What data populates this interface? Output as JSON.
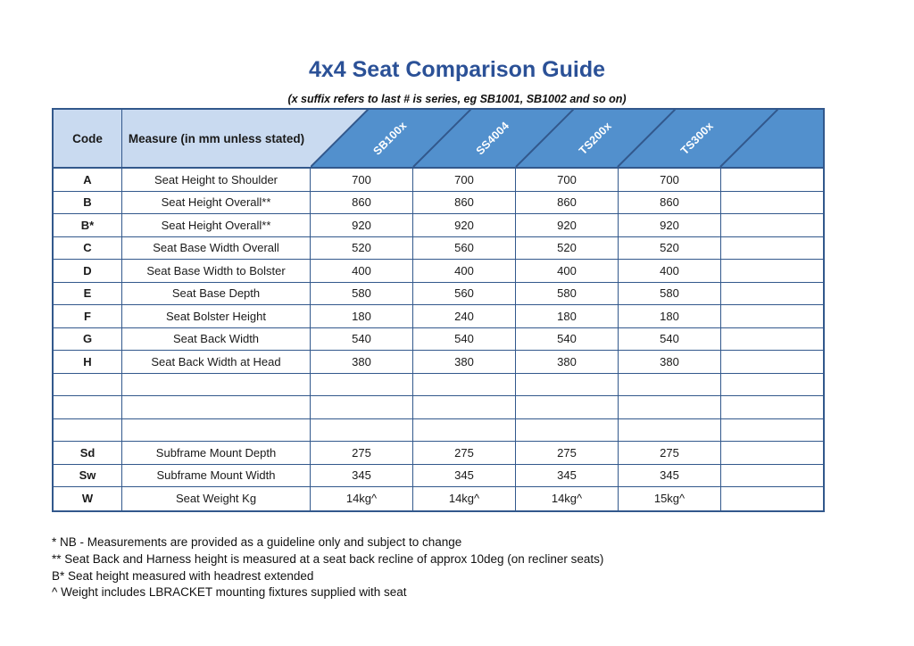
{
  "page": {
    "title": "4x4 Seat Comparison Guide",
    "subtitle": "(x suffix refers to last # is series, eg SB1001, SB1002 and so on)"
  },
  "table": {
    "code_header": "Code",
    "measure_header": "Measure (in mm unless stated)",
    "series_headers": [
      "SB100x",
      "SS4004",
      "TS200x",
      "TS300x"
    ],
    "rows": [
      {
        "code": "A",
        "measure": "Seat Height to Shoulder",
        "values": [
          "700",
          "700",
          "700",
          "700",
          ""
        ]
      },
      {
        "code": "B",
        "measure": "Seat Height Overall**",
        "values": [
          "860",
          "860",
          "860",
          "860",
          ""
        ]
      },
      {
        "code": "B*",
        "measure": "Seat Height Overall**",
        "values": [
          "920",
          "920",
          "920",
          "920",
          ""
        ]
      },
      {
        "code": "C",
        "measure": "Seat Base Width Overall",
        "values": [
          "520",
          "560",
          "520",
          "520",
          ""
        ]
      },
      {
        "code": "D",
        "measure": "Seat Base Width to Bolster",
        "values": [
          "400",
          "400",
          "400",
          "400",
          ""
        ]
      },
      {
        "code": "E",
        "measure": "Seat Base Depth",
        "values": [
          "580",
          "560",
          "580",
          "580",
          ""
        ]
      },
      {
        "code": "F",
        "measure": "Seat Bolster Height",
        "values": [
          "180",
          "240",
          "180",
          "180",
          ""
        ]
      },
      {
        "code": "G",
        "measure": "Seat Back Width",
        "values": [
          "540",
          "540",
          "540",
          "540",
          ""
        ]
      },
      {
        "code": "H",
        "measure": "Seat Back Width at Head",
        "values": [
          "380",
          "380",
          "380",
          "380",
          ""
        ]
      },
      {
        "code": "",
        "measure": "",
        "values": [
          "",
          "",
          "",
          "",
          ""
        ]
      },
      {
        "code": "",
        "measure": "",
        "values": [
          "",
          "",
          "",
          "",
          ""
        ]
      },
      {
        "code": "",
        "measure": "",
        "values": [
          "",
          "",
          "",
          "",
          ""
        ]
      },
      {
        "code": "Sd",
        "measure": "Subframe Mount Depth",
        "values": [
          "275",
          "275",
          "275",
          "275",
          ""
        ]
      },
      {
        "code": "Sw",
        "measure": "Subframe Mount Width",
        "values": [
          "345",
          "345",
          "345",
          "345",
          ""
        ]
      },
      {
        "code": "W",
        "measure": "Seat Weight Kg",
        "values": [
          "14kg^",
          "14kg^",
          "14kg^",
          "15kg^",
          ""
        ]
      }
    ]
  },
  "footnotes": [
    "* NB - Measurements are provided as a guideline only and subject to change",
    "** Seat Back and Harness height is measured at a seat back recline of approx 10deg (on recliner seats)",
    "B* Seat height measured with headrest extended",
    "^ Weight includes LBRACKET mounting fixtures supplied with seat"
  ],
  "colors": {
    "title_blue": "#2b5197",
    "header_light": "#c9daf0",
    "header_dark": "#5290cd",
    "grid": "#32588c"
  }
}
